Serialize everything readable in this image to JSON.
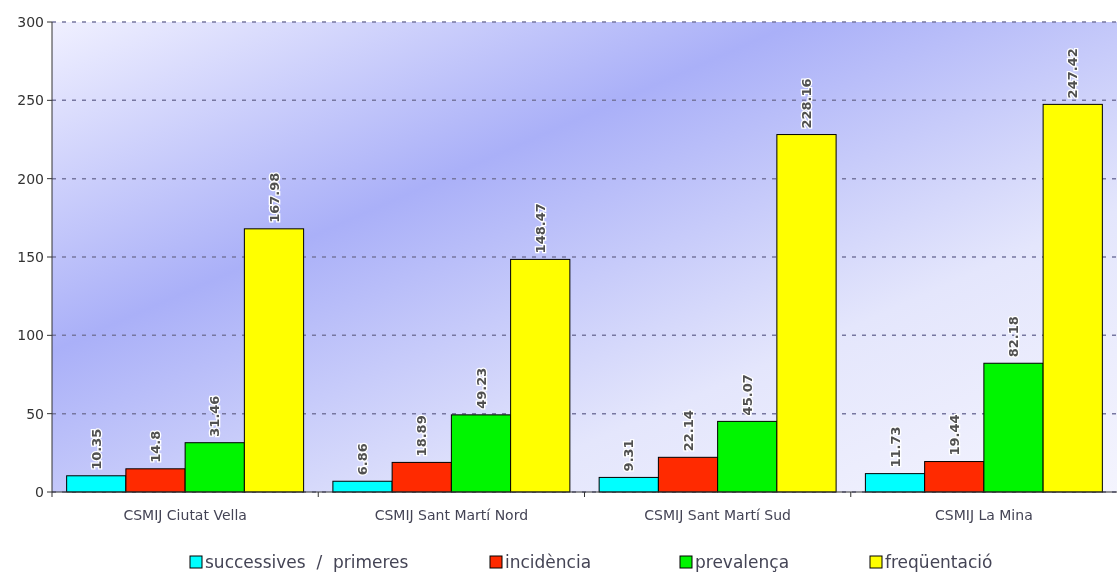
{
  "chart_data": {
    "type": "bar",
    "categories": [
      "CSMIJ Ciutat Vella",
      "CSMIJ Sant Martí Nord",
      "CSMIJ Sant Martí Sud",
      "CSMIJ La Mina"
    ],
    "series": [
      {
        "name": "successives  /  primeres",
        "color": "#00ffff",
        "values": [
          10.35,
          6.86,
          9.31,
          11.73
        ]
      },
      {
        "name": "incidència",
        "color": "#ff2a00",
        "values": [
          14.8,
          18.89,
          22.14,
          19.44
        ]
      },
      {
        "name": "prevalença",
        "color": "#00f500",
        "values": [
          31.46,
          49.23,
          45.07,
          82.18
        ]
      },
      {
        "name": "freqüentació",
        "color": "#ffff00",
        "values": [
          167.98,
          148.47,
          228.16,
          247.42
        ]
      }
    ],
    "ylim": [
      0,
      300
    ],
    "yticks": [
      0,
      50,
      100,
      150,
      200,
      250,
      300
    ],
    "grid": "y",
    "legend": "bottom",
    "data_labels": true
  }
}
